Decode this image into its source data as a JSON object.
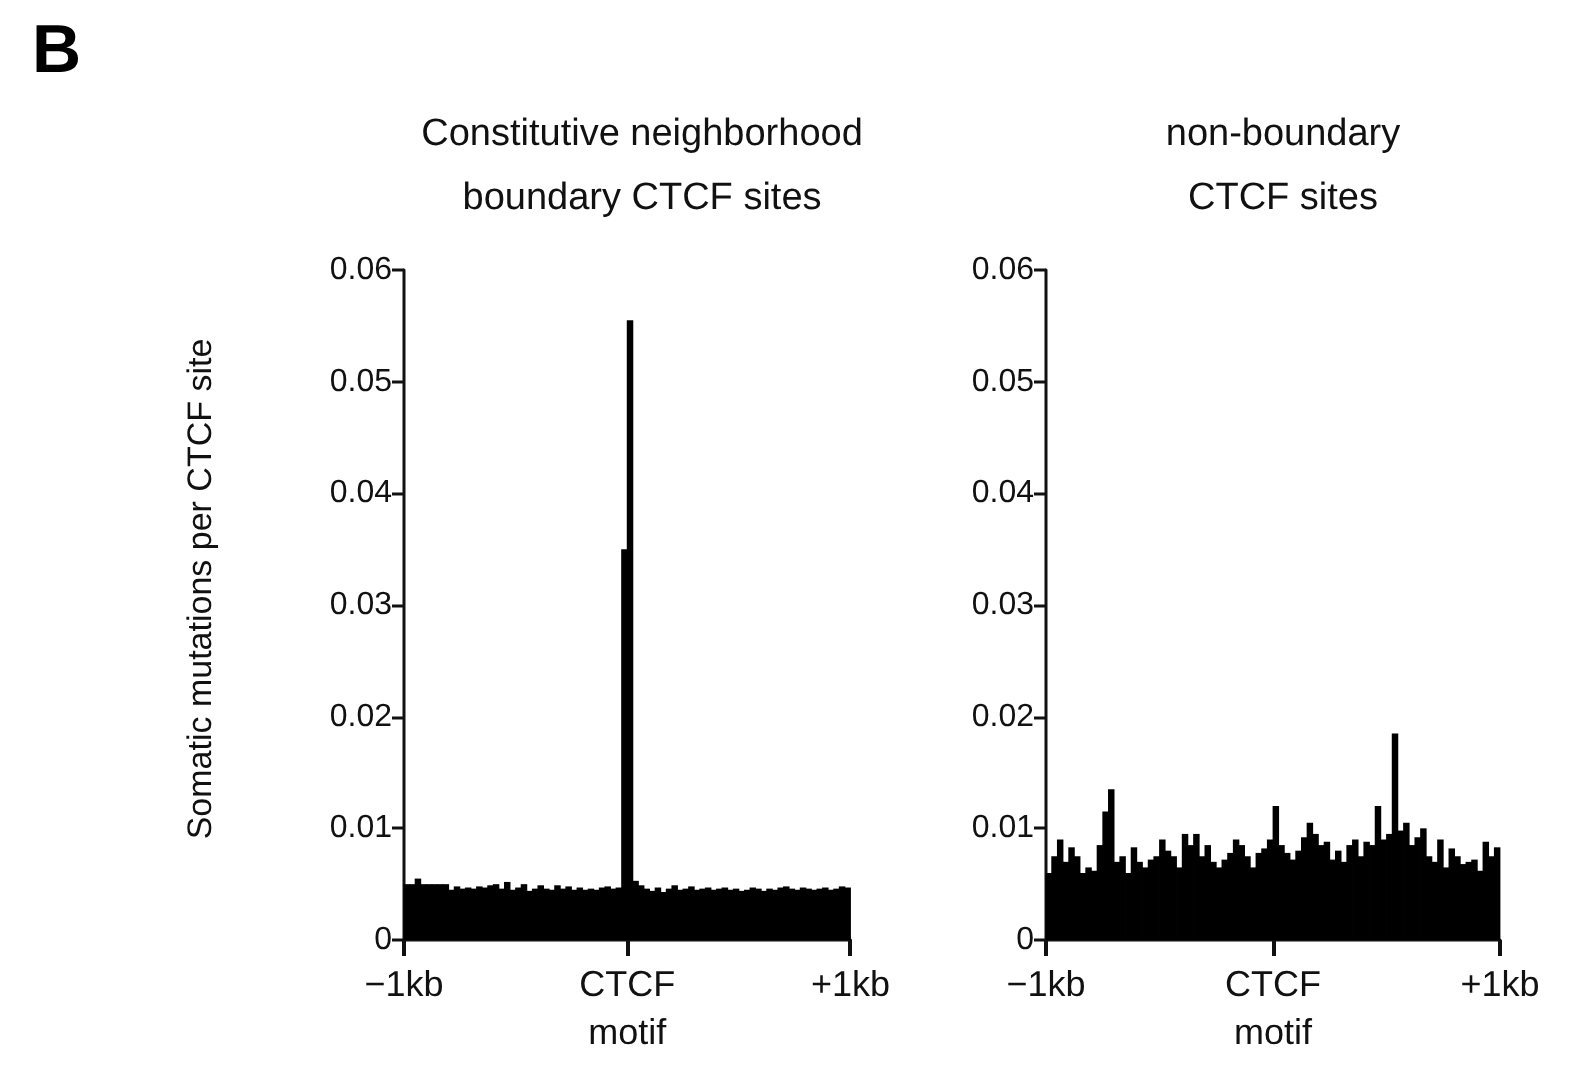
{
  "chart_data": [
    {
      "type": "bar",
      "title": "Constitutive neighborhood\nboundary CTCF sites",
      "ylabel": "Somatic mutations per CTCF site",
      "annotations": [
        "B"
      ],
      "x": [
        -0.9875,
        -0.9625,
        -0.9375,
        -0.9125,
        -0.8875,
        -0.8625,
        -0.8375,
        -0.8125,
        -0.7875,
        -0.7625,
        -0.7375,
        -0.7125,
        -0.6875,
        -0.6625,
        -0.6375,
        -0.6125,
        -0.5875,
        -0.5625,
        -0.5375,
        -0.5125,
        -0.4875,
        -0.4625,
        -0.4375,
        -0.4125,
        -0.3875,
        -0.3625,
        -0.3375,
        -0.3125,
        -0.2875,
        -0.2625,
        -0.2375,
        -0.2125,
        -0.1875,
        -0.1625,
        -0.1375,
        -0.1125,
        -0.0875,
        -0.0625,
        -0.0375,
        -0.0125,
        0.0125,
        0.0375,
        0.0625,
        0.0875,
        0.1125,
        0.1375,
        0.1625,
        0.1875,
        0.2125,
        0.2375,
        0.2625,
        0.2875,
        0.3125,
        0.3375,
        0.3625,
        0.3875,
        0.4125,
        0.4375,
        0.4625,
        0.4875,
        0.5125,
        0.5375,
        0.5625,
        0.5875,
        0.6125,
        0.6375,
        0.6625,
        0.6875,
        0.7125,
        0.7375,
        0.7625,
        0.7875,
        0.8125,
        0.8375,
        0.8625,
        0.8875,
        0.9125,
        0.9375,
        0.9625,
        0.9875
      ],
      "series": [
        {
          "color": "#000000",
          "values": [
            0.005,
            0.005,
            0.0055,
            0.005,
            0.005,
            0.005,
            0.005,
            0.005,
            0.0045,
            0.0048,
            0.0046,
            0.0047,
            0.0046,
            0.0048,
            0.0047,
            0.0049,
            0.005,
            0.0046,
            0.0052,
            0.0045,
            0.0047,
            0.005,
            0.0044,
            0.0046,
            0.0049,
            0.0046,
            0.0045,
            0.0049,
            0.0046,
            0.0048,
            0.0045,
            0.0047,
            0.0045,
            0.0046,
            0.0045,
            0.0047,
            0.0048,
            0.0046,
            0.0047,
            0.035,
            0.0555,
            0.0053,
            0.0049,
            0.0046,
            0.0044,
            0.0047,
            0.0043,
            0.0046,
            0.0049,
            0.0045,
            0.0046,
            0.0048,
            0.0045,
            0.0046,
            0.0047,
            0.0045,
            0.0046,
            0.0047,
            0.0045,
            0.0046,
            0.0044,
            0.0045,
            0.0047,
            0.0046,
            0.0044,
            0.0046,
            0.0045,
            0.0047,
            0.0048,
            0.0046,
            0.0045,
            0.0047,
            0.0046,
            0.0045,
            0.0046,
            0.0047,
            0.0045,
            0.0046,
            0.0048,
            0.0047
          ]
        }
      ],
      "xlim": [
        -1,
        1
      ],
      "xticks": [
        {
          "value": -1,
          "label": "−1kb"
        },
        {
          "value": 0,
          "label": "CTCF\nmotif"
        },
        {
          "value": 1,
          "label": "+1kb"
        }
      ],
      "ylim": [
        0,
        0.06
      ],
      "yticks": [
        0,
        0.01,
        0.02,
        0.03,
        0.04,
        0.05,
        0.06
      ],
      "grid": false
    },
    {
      "type": "bar",
      "title": "non-boundary\nCTCF sites",
      "x": [
        -0.9875,
        -0.9625,
        -0.9375,
        -0.9125,
        -0.8875,
        -0.8625,
        -0.8375,
        -0.8125,
        -0.7875,
        -0.7625,
        -0.7375,
        -0.7125,
        -0.6875,
        -0.6625,
        -0.6375,
        -0.6125,
        -0.5875,
        -0.5625,
        -0.5375,
        -0.5125,
        -0.4875,
        -0.4625,
        -0.4375,
        -0.4125,
        -0.3875,
        -0.3625,
        -0.3375,
        -0.3125,
        -0.2875,
        -0.2625,
        -0.2375,
        -0.2125,
        -0.1875,
        -0.1625,
        -0.1375,
        -0.1125,
        -0.0875,
        -0.0625,
        -0.0375,
        -0.0125,
        0.0125,
        0.0375,
        0.0625,
        0.0875,
        0.1125,
        0.1375,
        0.1625,
        0.1875,
        0.2125,
        0.2375,
        0.2625,
        0.2875,
        0.3125,
        0.3375,
        0.3625,
        0.3875,
        0.4125,
        0.4375,
        0.4625,
        0.4875,
        0.5125,
        0.5375,
        0.5625,
        0.5875,
        0.6125,
        0.6375,
        0.6625,
        0.6875,
        0.7125,
        0.7375,
        0.7625,
        0.7875,
        0.8125,
        0.8375,
        0.8625,
        0.8875,
        0.9125,
        0.9375,
        0.9625,
        0.9875
      ],
      "series": [
        {
          "color": "#000000",
          "values": [
            0.006,
            0.0075,
            0.009,
            0.007,
            0.0083,
            0.0075,
            0.006,
            0.0065,
            0.0062,
            0.0085,
            0.0115,
            0.0135,
            0.007,
            0.0075,
            0.006,
            0.0083,
            0.007,
            0.0065,
            0.0072,
            0.0075,
            0.009,
            0.008,
            0.0075,
            0.0065,
            0.0095,
            0.0085,
            0.0095,
            0.0075,
            0.0085,
            0.007,
            0.0065,
            0.0072,
            0.0078,
            0.009,
            0.0085,
            0.0075,
            0.0065,
            0.0078,
            0.0082,
            0.009,
            0.012,
            0.0085,
            0.0078,
            0.0072,
            0.008,
            0.0092,
            0.0105,
            0.0095,
            0.0085,
            0.0088,
            0.0072,
            0.008,
            0.007,
            0.0085,
            0.009,
            0.0075,
            0.0088,
            0.0085,
            0.012,
            0.009,
            0.0095,
            0.0185,
            0.0098,
            0.0105,
            0.0085,
            0.0092,
            0.01,
            0.0075,
            0.007,
            0.009,
            0.0065,
            0.0082,
            0.0075,
            0.0068,
            0.007,
            0.0072,
            0.0062,
            0.0088,
            0.0075,
            0.0083
          ]
        }
      ],
      "xlim": [
        -1,
        1
      ],
      "xticks": [
        {
          "value": -1,
          "label": "−1kb"
        },
        {
          "value": 0,
          "label": "CTCF\nmotif"
        },
        {
          "value": 1,
          "label": "+1kb"
        }
      ],
      "ylim": [
        0,
        0.06
      ],
      "yticks": [
        0,
        0.01,
        0.02,
        0.03,
        0.04,
        0.05,
        0.06
      ],
      "grid": false
    }
  ]
}
